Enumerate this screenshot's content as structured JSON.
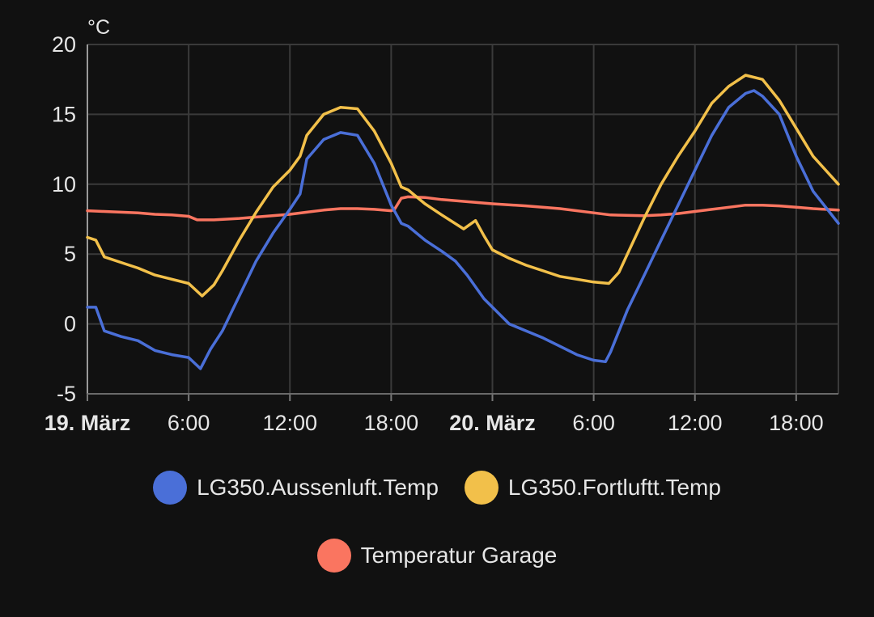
{
  "chart_data": {
    "type": "line",
    "unit": "°C",
    "ylim": [
      -5,
      20
    ],
    "yticks": [
      "20",
      "15",
      "10",
      "5",
      "0",
      "-5"
    ],
    "xlim": [
      0,
      44.5
    ],
    "xticks": [
      {
        "x": 0,
        "label": "19. März",
        "bold": true
      },
      {
        "x": 6,
        "label": "6:00",
        "bold": false
      },
      {
        "x": 12,
        "label": "12:00",
        "bold": false
      },
      {
        "x": 18,
        "label": "18:00",
        "bold": false
      },
      {
        "x": 24,
        "label": "20. März",
        "bold": true
      },
      {
        "x": 30,
        "label": "6:00",
        "bold": false
      },
      {
        "x": 36,
        "label": "12:00",
        "bold": false
      },
      {
        "x": 42,
        "label": "18:00",
        "bold": false
      }
    ],
    "grid": true,
    "legend_position": "bottom",
    "series": [
      {
        "name": "LG350.Aussenluft.Temp",
        "color": "#4a6fd8",
        "points": [
          [
            0,
            1.2
          ],
          [
            0.5,
            1.2
          ],
          [
            1,
            -0.5
          ],
          [
            2,
            -0.9
          ],
          [
            3,
            -1.2
          ],
          [
            4,
            -1.9
          ],
          [
            5,
            -2.2
          ],
          [
            6,
            -2.4
          ],
          [
            6.7,
            -3.2
          ],
          [
            7.3,
            -1.8
          ],
          [
            8,
            -0.5
          ],
          [
            9,
            2
          ],
          [
            10,
            4.5
          ],
          [
            11,
            6.5
          ],
          [
            12,
            8.2
          ],
          [
            12.6,
            9.3
          ],
          [
            13,
            11.8
          ],
          [
            14,
            13.2
          ],
          [
            15,
            13.7
          ],
          [
            16,
            13.5
          ],
          [
            17,
            11.5
          ],
          [
            18,
            8.5
          ],
          [
            18.6,
            7.2
          ],
          [
            19,
            7
          ],
          [
            20,
            6
          ],
          [
            21,
            5.2
          ],
          [
            21.8,
            4.5
          ],
          [
            22.5,
            3.5
          ],
          [
            23.5,
            1.8
          ],
          [
            25,
            0
          ],
          [
            26,
            -0.5
          ],
          [
            27,
            -1
          ],
          [
            28,
            -1.6
          ],
          [
            29,
            -2.2
          ],
          [
            30,
            -2.6
          ],
          [
            30.7,
            -2.7
          ],
          [
            31,
            -2
          ],
          [
            32,
            1
          ],
          [
            33,
            3.5
          ],
          [
            34,
            6
          ],
          [
            35,
            8.5
          ],
          [
            36,
            11
          ],
          [
            37,
            13.5
          ],
          [
            38,
            15.5
          ],
          [
            39,
            16.5
          ],
          [
            39.5,
            16.7
          ],
          [
            40,
            16.3
          ],
          [
            41,
            15
          ],
          [
            42,
            12
          ],
          [
            43,
            9.5
          ],
          [
            44.5,
            7.2
          ]
        ]
      },
      {
        "name": "LG350.Fortluftt.Temp",
        "color": "#f2c04a",
        "points": [
          [
            0,
            6.2
          ],
          [
            0.5,
            6
          ],
          [
            1,
            4.8
          ],
          [
            2,
            4.4
          ],
          [
            3,
            4
          ],
          [
            4,
            3.5
          ],
          [
            5,
            3.2
          ],
          [
            6,
            2.9
          ],
          [
            6.8,
            2
          ],
          [
            7.5,
            2.8
          ],
          [
            8,
            3.8
          ],
          [
            9,
            6
          ],
          [
            10,
            8
          ],
          [
            11,
            9.8
          ],
          [
            12,
            11
          ],
          [
            12.6,
            12
          ],
          [
            13,
            13.5
          ],
          [
            14,
            15
          ],
          [
            15,
            15.5
          ],
          [
            16,
            15.4
          ],
          [
            17,
            13.8
          ],
          [
            18,
            11.5
          ],
          [
            18.6,
            9.8
          ],
          [
            19,
            9.6
          ],
          [
            20,
            8.6
          ],
          [
            21,
            7.8
          ],
          [
            22.3,
            6.8
          ],
          [
            23,
            7.4
          ],
          [
            23.5,
            6.3
          ],
          [
            24,
            5.3
          ],
          [
            25,
            4.7
          ],
          [
            26,
            4.2
          ],
          [
            27,
            3.8
          ],
          [
            28,
            3.4
          ],
          [
            29,
            3.2
          ],
          [
            30,
            3
          ],
          [
            30.9,
            2.9
          ],
          [
            31.5,
            3.7
          ],
          [
            32,
            5
          ],
          [
            33,
            7.6
          ],
          [
            34,
            10
          ],
          [
            35,
            12
          ],
          [
            36,
            13.8
          ],
          [
            37,
            15.8
          ],
          [
            38,
            17
          ],
          [
            39,
            17.8
          ],
          [
            40,
            17.5
          ],
          [
            41,
            16
          ],
          [
            42,
            14
          ],
          [
            43,
            12
          ],
          [
            44.5,
            10
          ]
        ]
      },
      {
        "name": "Temperatur Garage",
        "color": "#fa7560",
        "points": [
          [
            0,
            8.1
          ],
          [
            1,
            8.05
          ],
          [
            2,
            8
          ],
          [
            3,
            7.95
          ],
          [
            4,
            7.85
          ],
          [
            5,
            7.8
          ],
          [
            6,
            7.7
          ],
          [
            6.5,
            7.45
          ],
          [
            7.5,
            7.45
          ],
          [
            9,
            7.55
          ],
          [
            10,
            7.65
          ],
          [
            12,
            7.85
          ],
          [
            13,
            8
          ],
          [
            14,
            8.15
          ],
          [
            15,
            8.25
          ],
          [
            16,
            8.25
          ],
          [
            17,
            8.2
          ],
          [
            18,
            8.1
          ],
          [
            18.2,
            8.2
          ],
          [
            18.6,
            9
          ],
          [
            19,
            9.1
          ],
          [
            20,
            9.05
          ],
          [
            21,
            8.9
          ],
          [
            22,
            8.8
          ],
          [
            23,
            8.7
          ],
          [
            24,
            8.6
          ],
          [
            26,
            8.45
          ],
          [
            28,
            8.25
          ],
          [
            30,
            7.95
          ],
          [
            31,
            7.8
          ],
          [
            33,
            7.75
          ],
          [
            34,
            7.8
          ],
          [
            35,
            7.9
          ],
          [
            36,
            8.05
          ],
          [
            37,
            8.2
          ],
          [
            38,
            8.35
          ],
          [
            39,
            8.5
          ],
          [
            40,
            8.5
          ],
          [
            41,
            8.45
          ],
          [
            42,
            8.35
          ],
          [
            43,
            8.25
          ],
          [
            44.5,
            8.15
          ]
        ]
      }
    ]
  }
}
